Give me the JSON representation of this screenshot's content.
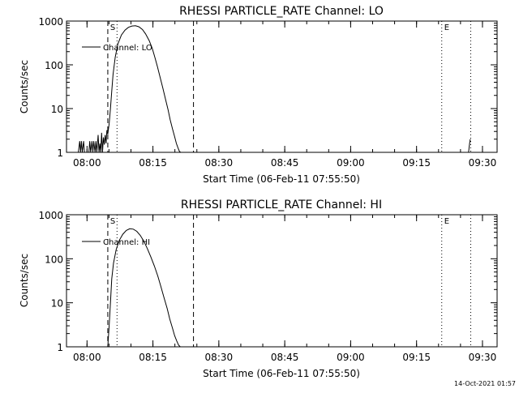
{
  "figure": {
    "timestamp": "14-Oct-2021 01:57",
    "colors": {
      "background": "#ffffff",
      "ink": "#000000"
    }
  },
  "chart_data": [
    {
      "type": "line",
      "title": "RHESSI PARTICLE_RATE Channel: LO",
      "xlabel": "Start Time (06-Feb-11 07:55:50)",
      "ylabel": "Counts/sec",
      "yscale": "log",
      "ylim": [
        1,
        1000
      ],
      "y_ticks": [
        "1",
        "10",
        "100",
        "1000"
      ],
      "x_ticks": [
        "08:00",
        "08:15",
        "08:30",
        "08:45",
        "09:00",
        "09:15",
        "09:30"
      ],
      "x_tick_minutes": [
        4.17,
        19.17,
        34.17,
        49.17,
        64.17,
        79.17,
        94.17
      ],
      "xlim_minutes": [
        -0.5,
        97.5
      ],
      "legend": {
        "label": "Channel: LO",
        "position": "top-left"
      },
      "markers": [
        {
          "label": "S",
          "minute": 8.9,
          "style": "dashed"
        },
        {
          "label": "",
          "minute": 28.4,
          "style": "dashed"
        },
        {
          "label": "",
          "minute": 11.0,
          "style": "dotted"
        },
        {
          "label": "E",
          "minute": 84.9,
          "style": "dotted"
        },
        {
          "label": "",
          "minute": 91.5,
          "style": "dotted"
        }
      ],
      "series": [
        {
          "name": "Channel: LO",
          "segments": [
            {
              "x": [
                2.0,
                2.2,
                2.5,
                2.7,
                2.9,
                3.1,
                3.4,
                3.6,
                4.6,
                4.8,
                5.0,
                5.3,
                5.5,
                5.7,
                6.0,
                6.2,
                6.4,
                6.7,
                6.9,
                7.1,
                7.3,
                7.5,
                7.7,
                7.9,
                8.1,
                8.3,
                8.5,
                8.7,
                8.9
              ],
              "y": [
                1,
                1,
                1.8,
                1,
                1.8,
                1,
                1.8,
                1,
                1,
                1.8,
                1,
                1.8,
                1,
                1.8,
                1,
                1.8,
                1,
                2.5,
                1,
                1.6,
                1,
                2.8,
                1,
                2.2,
                1.5,
                2.5,
                1.6,
                3.2,
                2.6
              ]
            },
            {
              "x": [
                8.9,
                9.2,
                9.5,
                9.8,
                10.1,
                10.6,
                11.2,
                12.0,
                12.8,
                13.6,
                14.4,
                15.2,
                16.0,
                16.8,
                17.5,
                18.3,
                19.0,
                19.6,
                20.2,
                20.8,
                21.4,
                22.0,
                22.6,
                23.1,
                23.6,
                24.1,
                24.5,
                24.9,
                25.2,
                25.5,
                25.8
              ],
              "y": [
                2.6,
                4.5,
                10,
                25,
                60,
                150,
                300,
                480,
                620,
                720,
                770,
                780,
                740,
                640,
                510,
                360,
                240,
                150,
                90,
                52,
                30,
                17,
                9.5,
                5.5,
                3.5,
                2.3,
                1.6,
                1.25,
                1.05,
                1,
                1
              ]
            },
            {
              "x": [
                91.0,
                91.2,
                91.4
              ],
              "y": [
                1,
                1.5,
                2
              ]
            }
          ]
        }
      ]
    },
    {
      "type": "line",
      "title": "RHESSI PARTICLE_RATE Channel: HI",
      "xlabel": "Start Time (06-Feb-11 07:55:50)",
      "ylabel": "Counts/sec",
      "yscale": "log",
      "ylim": [
        1,
        1000
      ],
      "y_ticks": [
        "1",
        "10",
        "100",
        "1000"
      ],
      "x_ticks": [
        "08:00",
        "08:15",
        "08:30",
        "08:45",
        "09:00",
        "09:15",
        "09:30"
      ],
      "x_tick_minutes": [
        4.17,
        19.17,
        34.17,
        49.17,
        64.17,
        79.17,
        94.17
      ],
      "xlim_minutes": [
        -0.5,
        97.5
      ],
      "legend": {
        "label": "Channel: HI",
        "position": "top-left"
      },
      "markers": [
        {
          "label": "S",
          "minute": 8.9,
          "style": "dashed"
        },
        {
          "label": "",
          "minute": 28.4,
          "style": "dashed"
        },
        {
          "label": "",
          "minute": 11.0,
          "style": "dotted"
        },
        {
          "label": "E",
          "minute": 84.9,
          "style": "dotted"
        },
        {
          "label": "",
          "minute": 91.5,
          "style": "dotted"
        }
      ],
      "series": [
        {
          "name": "Channel: HI",
          "segments": [
            {
              "x": [
                8.9,
                9.2,
                9.5,
                9.8,
                10.2,
                10.8,
                11.5,
                12.3,
                13.1,
                13.9,
                14.7,
                15.5,
                16.3,
                17.1,
                17.9,
                18.7,
                19.5,
                20.3,
                21.0,
                21.7,
                22.4,
                23.0,
                23.6,
                24.1,
                24.6,
                25.0,
                25.4,
                25.8
              ],
              "y": [
                1,
                3,
                10,
                35,
                80,
                160,
                260,
                360,
                440,
                480,
                470,
                420,
                340,
                250,
                170,
                110,
                68,
                40,
                23,
                13,
                7.5,
                4.3,
                2.7,
                1.8,
                1.35,
                1.1,
                1,
                1
              ]
            }
          ]
        }
      ]
    }
  ]
}
